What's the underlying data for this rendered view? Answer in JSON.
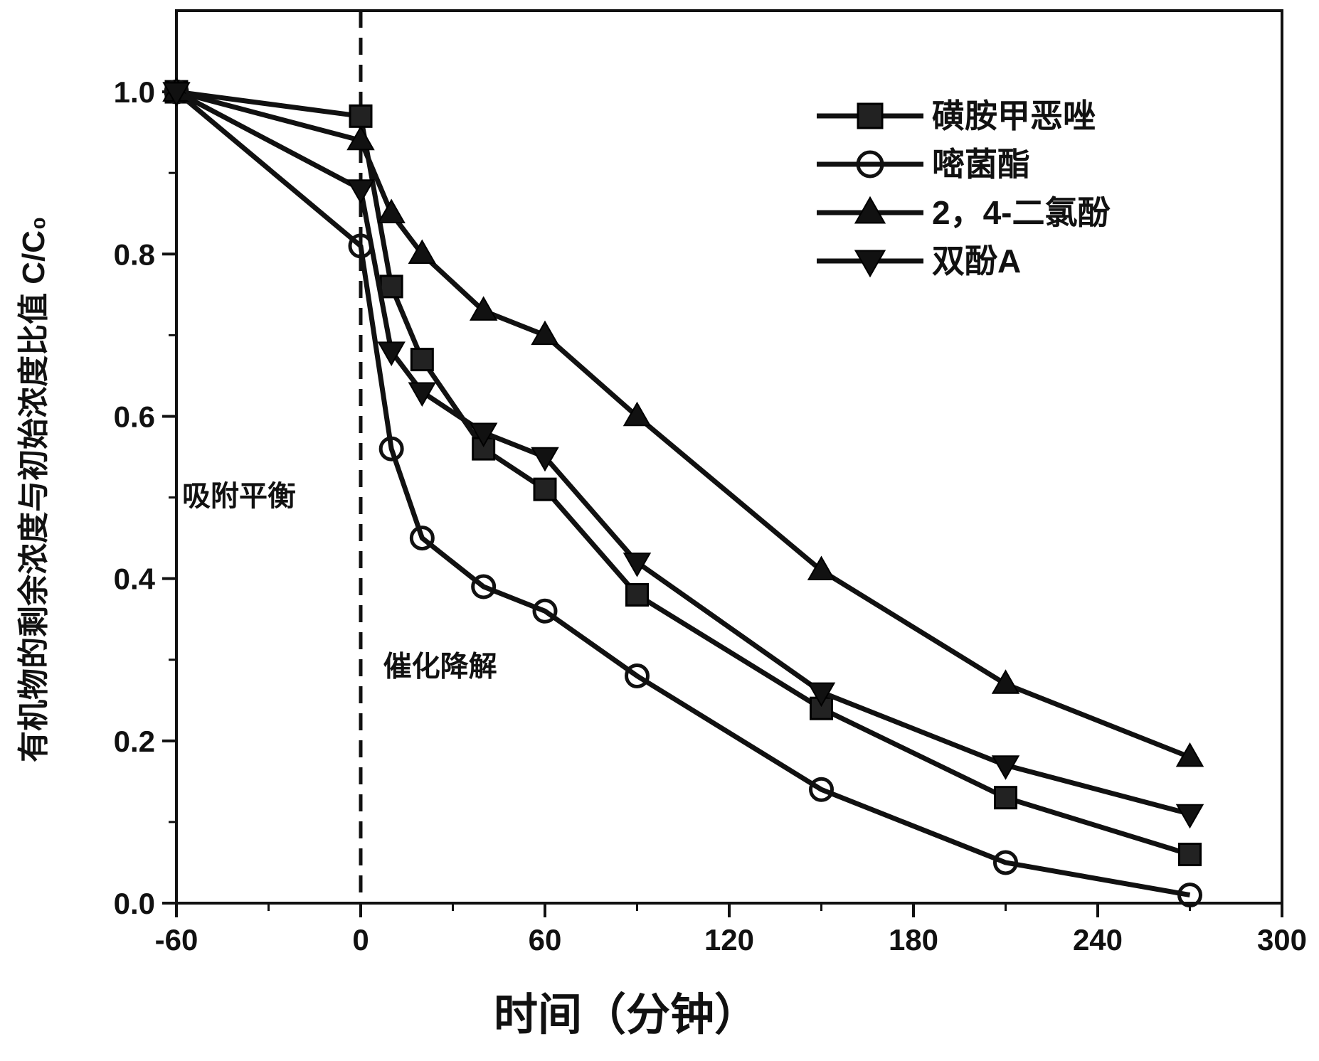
{
  "chart_data": {
    "type": "line",
    "title": "",
    "xlabel": "时间（分钟）",
    "ylabel": "有机物的剩余浓度与初始浓度比值 C/C₀",
    "xlim": [
      -60,
      300
    ],
    "ylim": [
      0.0,
      1.1
    ],
    "x_ticks": [
      -60,
      0,
      60,
      120,
      180,
      240,
      300
    ],
    "x_tick_labels": [
      "-60",
      "0",
      "60",
      "120",
      "180",
      "240",
      "300"
    ],
    "y_ticks": [
      0.0,
      0.2,
      0.4,
      0.6,
      0.8,
      1.0
    ],
    "y_tick_labels": [
      "0.0",
      "0.2",
      "0.4",
      "0.6",
      "0.8",
      "1.0"
    ],
    "grid": false,
    "legend_position": "top-right",
    "annotations": [
      {
        "text": "吸附平衡",
        "x": -60,
        "y": 0.49
      },
      {
        "text": "催化降解",
        "x": 5,
        "y": 0.28
      }
    ],
    "divider": {
      "x": 0,
      "style": "dashed"
    },
    "x": [
      -60,
      0,
      10,
      20,
      40,
      60,
      90,
      150,
      210,
      270
    ],
    "series": [
      {
        "name": "磺胺甲恶唑",
        "marker": "square",
        "values": [
          1.0,
          0.97,
          0.76,
          0.67,
          0.56,
          0.51,
          0.38,
          0.24,
          0.13,
          0.06
        ]
      },
      {
        "name": "嘧菌酯",
        "marker": "circle",
        "values": [
          1.0,
          0.81,
          0.56,
          0.45,
          0.39,
          0.36,
          0.28,
          0.14,
          0.05,
          0.01
        ]
      },
      {
        "name": "2，4-二氯酚",
        "marker": "triangle-up",
        "values": [
          1.0,
          0.94,
          0.85,
          0.8,
          0.73,
          0.7,
          0.6,
          0.41,
          0.27,
          0.18
        ]
      },
      {
        "name": "双酚A",
        "marker": "triangle-down",
        "values": [
          1.0,
          0.88,
          0.68,
          0.63,
          0.58,
          0.55,
          0.42,
          0.26,
          0.17,
          0.11
        ]
      }
    ]
  }
}
